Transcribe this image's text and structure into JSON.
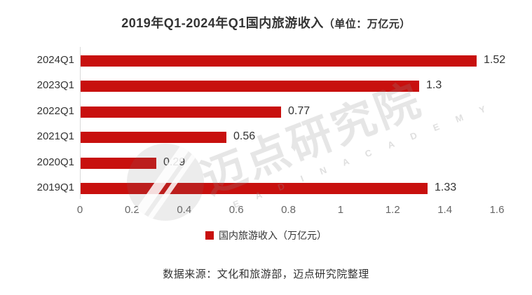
{
  "title": {
    "main": "2019年Q1-2024年Q1国内旅游收入",
    "unit": "（单位：万亿元）"
  },
  "chart_data": {
    "type": "bar",
    "orientation": "horizontal",
    "title": "2019年Q1-2024年Q1国内旅游收入（单位：万亿元）",
    "categories": [
      "2024Q1",
      "2023Q1",
      "2022Q1",
      "2021Q1",
      "2020Q1",
      "2019Q1"
    ],
    "values": [
      1.52,
      1.3,
      0.77,
      0.56,
      0.29,
      1.33
    ],
    "value_labels": [
      "1.52",
      "1.3",
      "0.77",
      "0.56",
      "0.29",
      "1.33"
    ],
    "xlabel": "",
    "ylabel": "",
    "xlim": [
      0,
      1.6
    ],
    "x_ticks": [
      "0",
      "0.2",
      "0.4",
      "0.6",
      "0.8",
      "1",
      "1.2",
      "1.4",
      "1.6"
    ],
    "grid": false,
    "legend_position": "bottom",
    "legend_entries": [
      "国内旅游收入（万亿元）"
    ],
    "bar_color": "#c8100e"
  },
  "legend": {
    "label": "国内旅游收入（万亿元）"
  },
  "source": {
    "text": "数据来源：文化和旅游部，迈点研究院整理"
  },
  "watermark": {
    "text": "迈点研究院",
    "subtext": "E A D I N   A C A D E M Y"
  },
  "colors": {
    "bar": "#c8100e",
    "title_text": "#333333",
    "axis_text": "#666666",
    "label_text": "#333333",
    "axis_line": "#d9d9d9",
    "background": "#ffffff"
  }
}
